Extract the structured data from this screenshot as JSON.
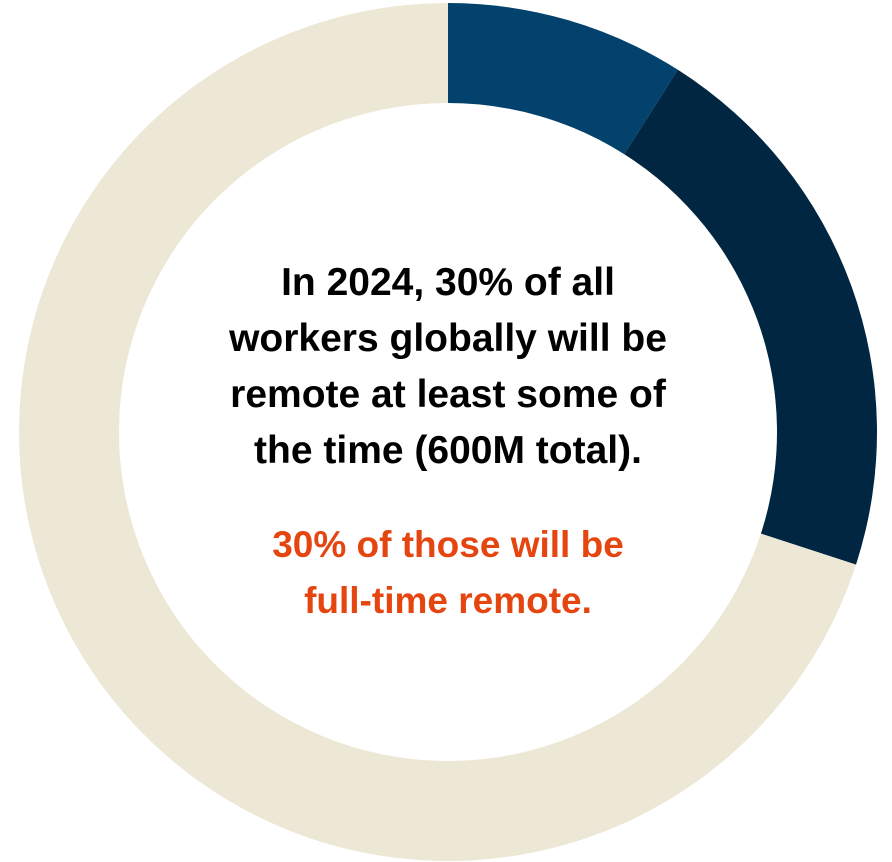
{
  "chart_data": {
    "type": "pie",
    "variant": "donut",
    "title": "",
    "categories": [
      "",
      "",
      ""
    ],
    "values": [
      9,
      21,
      70
    ],
    "colors": [
      "#02426d",
      "#012641",
      "#ede7d6"
    ],
    "annotations": {
      "headline_lines": [
        "In 2024, 30% of all",
        "workers globally will be",
        "remote at least some of",
        "the time (600M total)."
      ],
      "subline_lines": [
        "30% of those will be",
        "full-time remote."
      ],
      "headline_color": "#000000",
      "subline_color": "#e5450f"
    }
  }
}
